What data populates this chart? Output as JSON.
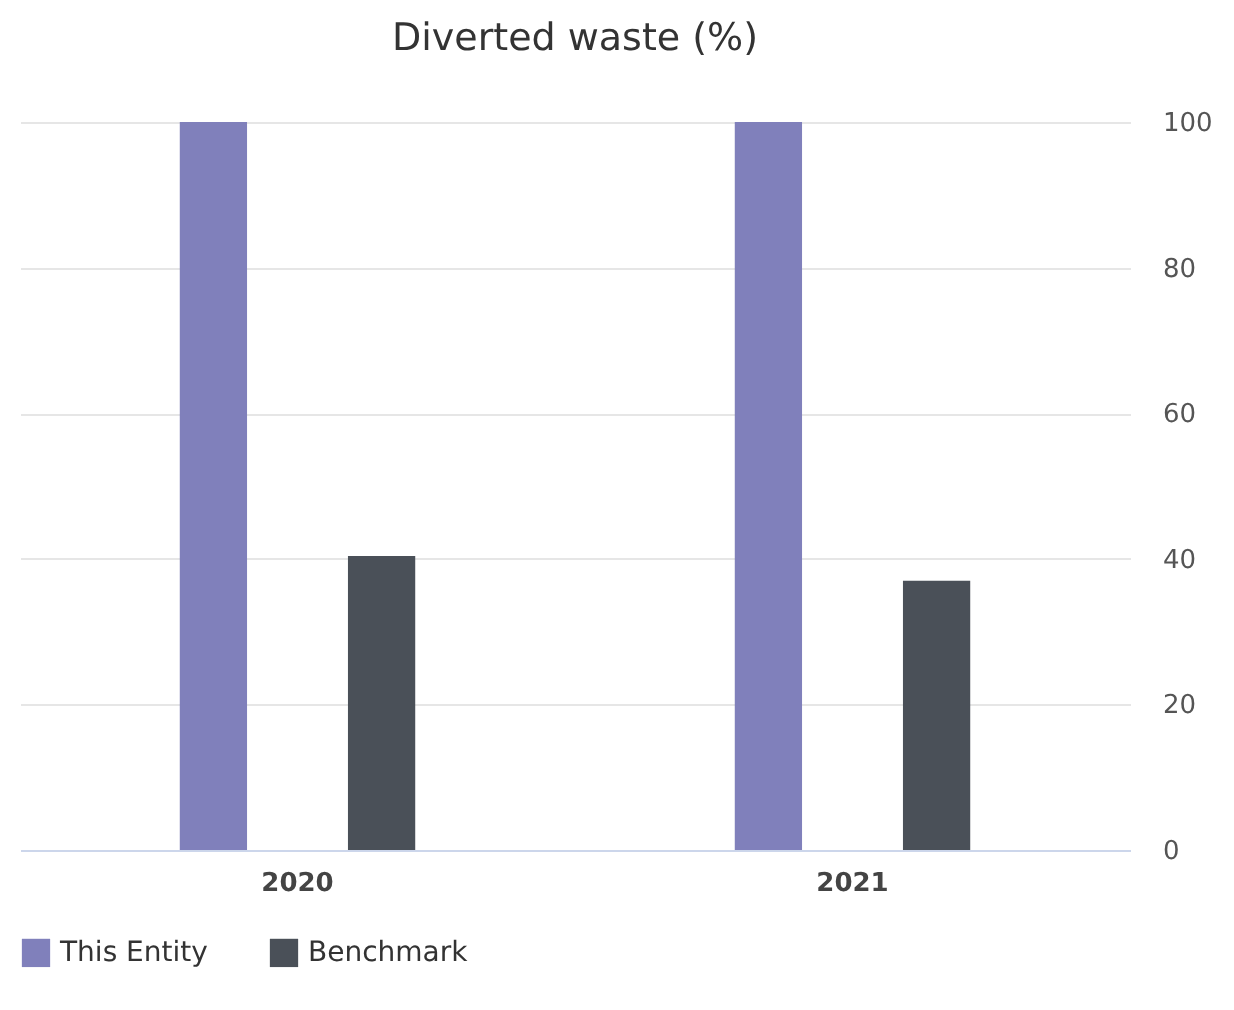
{
  "chart_data": {
    "type": "bar",
    "title": "Diverted waste (%)",
    "categories": [
      "2020",
      "2021"
    ],
    "series": [
      {
        "name": "This Entity",
        "color": "#8080bb",
        "values": [
          100,
          100
        ]
      },
      {
        "name": "Benchmark",
        "color": "#4a5058",
        "values": [
          40.4,
          37
        ]
      }
    ],
    "ylim": [
      0,
      100
    ],
    "yticks": [
      0,
      20,
      40,
      60,
      80,
      100
    ],
    "grid": "y",
    "legend": "bottom"
  }
}
